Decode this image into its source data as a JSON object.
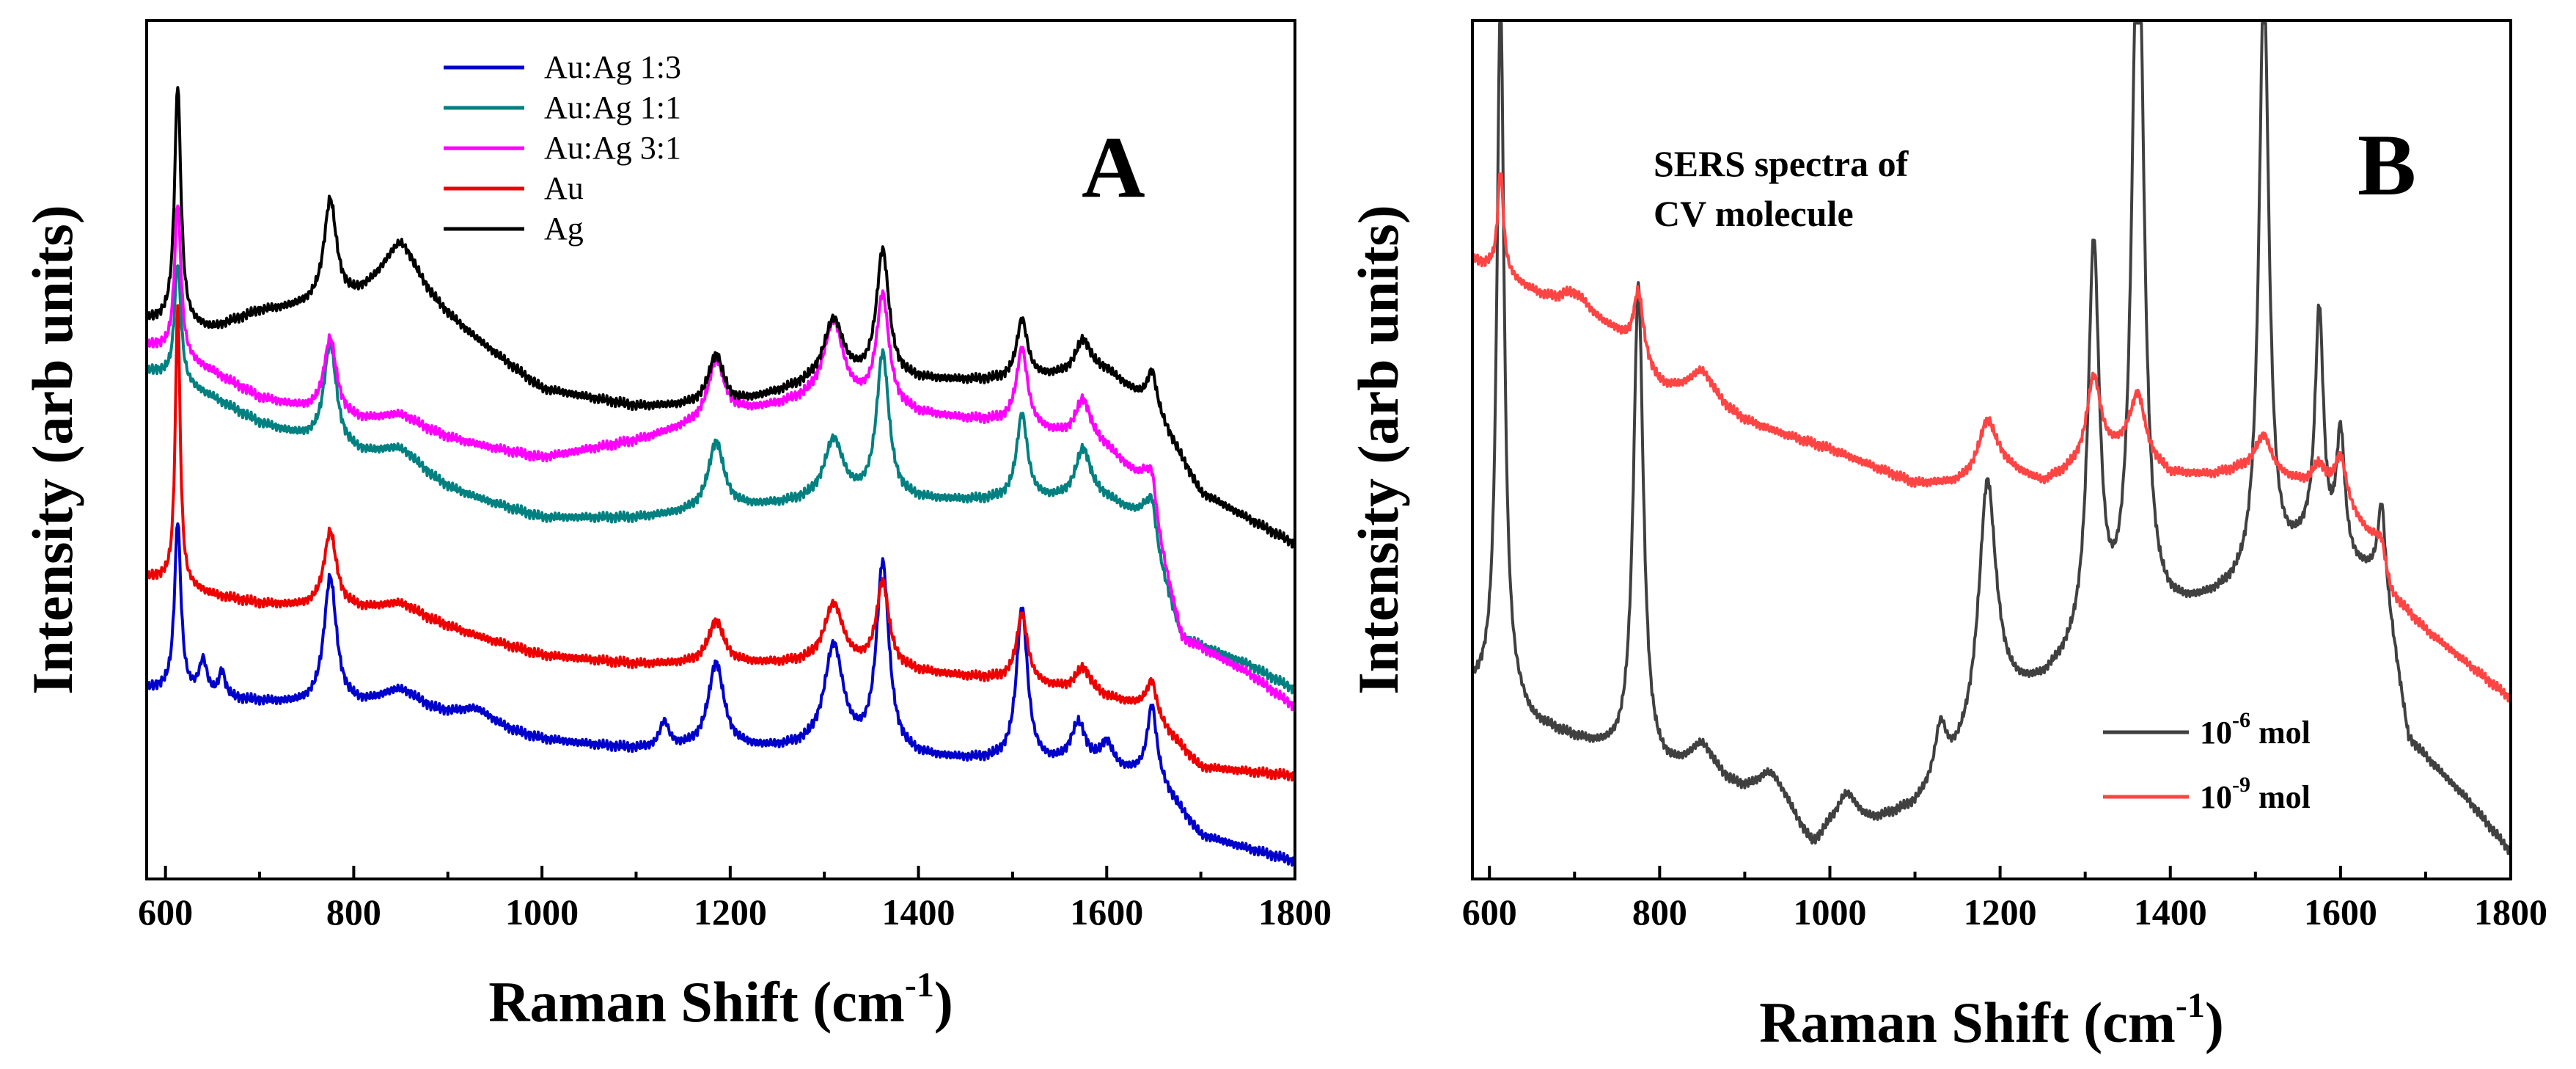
{
  "chart_data": [
    {
      "panel": "A",
      "type": "line",
      "panel_label": "A",
      "xlabel": "Raman Shift (cm",
      "xlabel_sup": "-1",
      "xlabel_tail": ")",
      "ylabel": "Intensity (arb units)",
      "xlim": [
        580,
        1800
      ],
      "ylim": [
        0,
        100
      ],
      "x_ticks": [
        600,
        800,
        1000,
        1200,
        1400,
        1600,
        1800
      ],
      "yticks_shown": false,
      "legend_position": "top-center",
      "series": [
        {
          "name": "Au:Ag 1:3",
          "color": "#0000cc",
          "baseline": [
            [
              590,
              22
            ],
            [
              650,
              21
            ],
            [
              700,
              20.5
            ],
            [
              800,
              19.5
            ],
            [
              900,
              18
            ],
            [
              1000,
              16
            ],
            [
              1100,
              15
            ],
            [
              1200,
              15
            ],
            [
              1300,
              15
            ],
            [
              1400,
              14
            ],
            [
              1500,
              13.5
            ],
            [
              1600,
              12.5
            ],
            [
              1650,
              12
            ],
            [
              1700,
              5
            ],
            [
              1800,
              2
            ]
          ],
          "peaks": [
            [
              613,
              20,
              4
            ],
            [
              640,
              4,
              5
            ],
            [
              660,
              3,
              4
            ],
            [
              775,
              15,
              8
            ],
            [
              850,
              3,
              30
            ],
            [
              930,
              2,
              25
            ],
            [
              1130,
              3,
              6
            ],
            [
              1185,
              10,
              10
            ],
            [
              1310,
              12,
              12
            ],
            [
              1362,
              22,
              8
            ],
            [
              1510,
              18,
              7
            ],
            [
              1570,
              5,
              10
            ],
            [
              1600,
              3,
              8
            ],
            [
              1648,
              8,
              6
            ]
          ]
        },
        {
          "name": "Au:Ag 1:1",
          "color": "#008080",
          "baseline": [
            [
              590,
              59
            ],
            [
              650,
              56
            ],
            [
              700,
              53
            ],
            [
              800,
              49
            ],
            [
              900,
              45
            ],
            [
              1000,
              42
            ],
            [
              1100,
              42
            ],
            [
              1200,
              43
            ],
            [
              1300,
              44
            ],
            [
              1400,
              44
            ],
            [
              1500,
              44
            ],
            [
              1600,
              44
            ],
            [
              1640,
              42
            ],
            [
              1680,
              28
            ],
            [
              1750,
              25
            ],
            [
              1800,
              22
            ]
          ],
          "peaks": [
            [
              613,
              14,
              4
            ],
            [
              775,
              12,
              8
            ],
            [
              850,
              3,
              30
            ],
            [
              1185,
              8,
              10
            ],
            [
              1310,
              7,
              12
            ],
            [
              1362,
              17,
              8
            ],
            [
              1510,
              10,
              7
            ],
            [
              1575,
              6,
              10
            ],
            [
              1648,
              5,
              6
            ]
          ]
        },
        {
          "name": "Au:Ag 3:1",
          "color": "#ff00ff",
          "baseline": [
            [
              590,
              62
            ],
            [
              650,
              59
            ],
            [
              700,
              56
            ],
            [
              800,
              53
            ],
            [
              900,
              51
            ],
            [
              1000,
              49
            ],
            [
              1100,
              51
            ],
            [
              1200,
              54
            ],
            [
              1300,
              56
            ],
            [
              1400,
              54
            ],
            [
              1500,
              53
            ],
            [
              1600,
              50
            ],
            [
              1640,
              46
            ],
            [
              1680,
              28
            ],
            [
              1750,
              24
            ],
            [
              1800,
              20
            ]
          ],
          "peaks": [
            [
              613,
              18,
              4
            ],
            [
              775,
              9,
              8
            ],
            [
              850,
              2,
              30
            ],
            [
              1185,
              7,
              10
            ],
            [
              1310,
              9,
              12
            ],
            [
              1362,
              13,
              8
            ],
            [
              1510,
              9,
              7
            ],
            [
              1575,
              5,
              10
            ],
            [
              1648,
              5,
              6
            ]
          ]
        },
        {
          "name": "Au",
          "color": "#ee0000",
          "baseline": [
            [
              590,
              35
            ],
            [
              650,
              33
            ],
            [
              700,
              32
            ],
            [
              800,
              31
            ],
            [
              900,
              29
            ],
            [
              1000,
              26
            ],
            [
              1100,
              25
            ],
            [
              1200,
              25
            ],
            [
              1300,
              25
            ],
            [
              1400,
              24
            ],
            [
              1500,
              23
            ],
            [
              1600,
              21
            ],
            [
              1640,
              20
            ],
            [
              1700,
              13
            ],
            [
              1800,
              12
            ]
          ],
          "peaks": [
            [
              613,
              33,
              3
            ],
            [
              775,
              9,
              8
            ],
            [
              850,
              2,
              30
            ],
            [
              1185,
              5,
              10
            ],
            [
              1310,
              7,
              12
            ],
            [
              1362,
              10,
              8
            ],
            [
              1510,
              8,
              7
            ],
            [
              1575,
              3,
              10
            ],
            [
              1648,
              4,
              6
            ]
          ]
        },
        {
          "name": "Ag",
          "color": "#000000",
          "baseline": [
            [
              590,
              65
            ],
            [
              650,
              64
            ],
            [
              700,
              66
            ],
            [
              800,
              67
            ],
            [
              850,
              69
            ],
            [
              900,
              65
            ],
            [
              950,
              61
            ],
            [
              1000,
              57
            ],
            [
              1100,
              55
            ],
            [
              1200,
              55
            ],
            [
              1300,
              58
            ],
            [
              1400,
              58
            ],
            [
              1500,
              58
            ],
            [
              1600,
              59
            ],
            [
              1650,
              55
            ],
            [
              1700,
              45
            ],
            [
              1800,
              39
            ]
          ],
          "peaks": [
            [
              613,
              28,
              4
            ],
            [
              775,
              12,
              8
            ],
            [
              850,
              5,
              25
            ],
            [
              1185,
              6,
              10
            ],
            [
              1310,
              7,
              12
            ],
            [
              1362,
              15,
              8
            ],
            [
              1510,
              7,
              7
            ],
            [
              1575,
              4,
              10
            ],
            [
              1648,
              4,
              6
            ]
          ]
        }
      ]
    },
    {
      "panel": "B",
      "type": "line",
      "panel_label": "B",
      "title_annotation": [
        "SERS spectra of",
        "CV molecule"
      ],
      "xlabel": "Raman Shift (cm",
      "xlabel_sup": "-1",
      "xlabel_tail": ")",
      "ylabel": "Intensity (arb units)",
      "xlim": [
        580,
        1800
      ],
      "ylim": [
        0,
        100
      ],
      "x_ticks": [
        600,
        800,
        1000,
        1200,
        1400,
        1600,
        1800
      ],
      "yticks_shown": false,
      "legend_position": "bottom-right",
      "series": [
        {
          "name": "10",
          "sup": "-6",
          "name_tail": " mol",
          "color": "#404040",
          "baseline": [
            [
              580,
              22
            ],
            [
              620,
              22
            ],
            [
              650,
              18
            ],
            [
              700,
              16
            ],
            [
              750,
              14
            ],
            [
              800,
              12
            ],
            [
              850,
              11
            ],
            [
              900,
              9
            ],
            [
              950,
              7
            ],
            [
              980,
              3
            ],
            [
              1000,
              5
            ],
            [
              1050,
              6
            ],
            [
              1100,
              8
            ],
            [
              1150,
              13
            ],
            [
              1200,
              20
            ],
            [
              1250,
              22
            ],
            [
              1300,
              26
            ],
            [
              1400,
              30
            ],
            [
              1450,
              32
            ],
            [
              1500,
              34
            ],
            [
              1560,
              38
            ],
            [
              1600,
              36
            ],
            [
              1650,
              35
            ],
            [
              1680,
              16
            ],
            [
              1750,
              9
            ],
            [
              1800,
              3
            ]
          ],
          "peaks": [
            [
              613,
              82,
              5
            ],
            [
              775,
              56,
              7
            ],
            [
              850,
              4,
              20
            ],
            [
              930,
              4,
              20
            ],
            [
              1020,
              4,
              15
            ],
            [
              1130,
              6,
              8
            ],
            [
              1185,
              28,
              12
            ],
            [
              1310,
              46,
              8
            ],
            [
              1362,
              90,
              8
            ],
            [
              1510,
              70,
              7
            ],
            [
              1575,
              28,
              6
            ],
            [
              1600,
              15,
              6
            ],
            [
              1648,
              8,
              5
            ]
          ]
        },
        {
          "name": "10",
          "sup": "-9",
          "name_tail": " mol",
          "color": "#ff4444",
          "baseline": [
            [
              580,
              72
            ],
            [
              620,
              70
            ],
            [
              680,
              66
            ],
            [
              750,
              63
            ],
            [
              800,
              57
            ],
            [
              850,
              55
            ],
            [
              900,
              53
            ],
            [
              1000,
              50
            ],
            [
              1100,
              46
            ],
            [
              1150,
              46
            ],
            [
              1200,
              48
            ],
            [
              1250,
              46
            ],
            [
              1300,
              48
            ],
            [
              1350,
              50
            ],
            [
              1400,
              47
            ],
            [
              1450,
              47
            ],
            [
              1500,
              48
            ],
            [
              1550,
              46
            ],
            [
              1600,
              44
            ],
            [
              1640,
              39
            ],
            [
              1660,
              33
            ],
            [
              1700,
              29
            ],
            [
              1800,
              21
            ]
          ],
          "peaks": [
            [
              613,
              12,
              4
            ],
            [
              700,
              3,
              25
            ],
            [
              775,
              8,
              7
            ],
            [
              850,
              4,
              20
            ],
            [
              1185,
              6,
              12
            ],
            [
              1310,
              10,
              10
            ],
            [
              1362,
              7,
              10
            ],
            [
              1510,
              4,
              10
            ],
            [
              1575,
              3,
              10
            ],
            [
              1600,
              5,
              8
            ],
            [
              1648,
              3,
              6
            ]
          ]
        }
      ]
    }
  ]
}
